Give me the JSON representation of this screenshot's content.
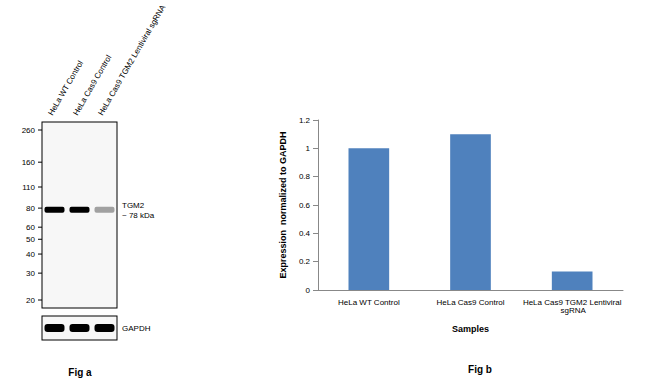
{
  "chart_data": {
    "type": "bar",
    "categories": [
      "HeLa WT Control",
      "HeLa Cas9 Control",
      "HeLa Cas9 TGM2 Lentiviral sgRNA"
    ],
    "values": [
      1.0,
      1.1,
      0.13
    ],
    "color": "#4f81bd",
    "x_label": "Samples",
    "y_label": "Expression  normalized to GAPDH",
    "ylim": [
      0,
      1.2
    ],
    "yticks": [
      0,
      0.2,
      0.4,
      0.6,
      0.8,
      1,
      1.2
    ],
    "grid": false
  },
  "blot": {
    "lanes": [
      "HeLa WT Control",
      "HeLa Cas9 Control",
      "HeLa Cas9 TGM2 Lentiviral sgRNA"
    ],
    "markers_kda": [
      260,
      160,
      110,
      80,
      60,
      50,
      40,
      30,
      20
    ],
    "target": "TGM2",
    "target_size_label": "~ 78 kDa",
    "target_kda": 78,
    "target_band_intensity": [
      1,
      1,
      0.35
    ],
    "loading_control": "GAPDH",
    "loading_band_intensity": [
      1,
      1,
      1
    ]
  },
  "panel_labels": [
    "Fig a",
    "Fig b"
  ]
}
